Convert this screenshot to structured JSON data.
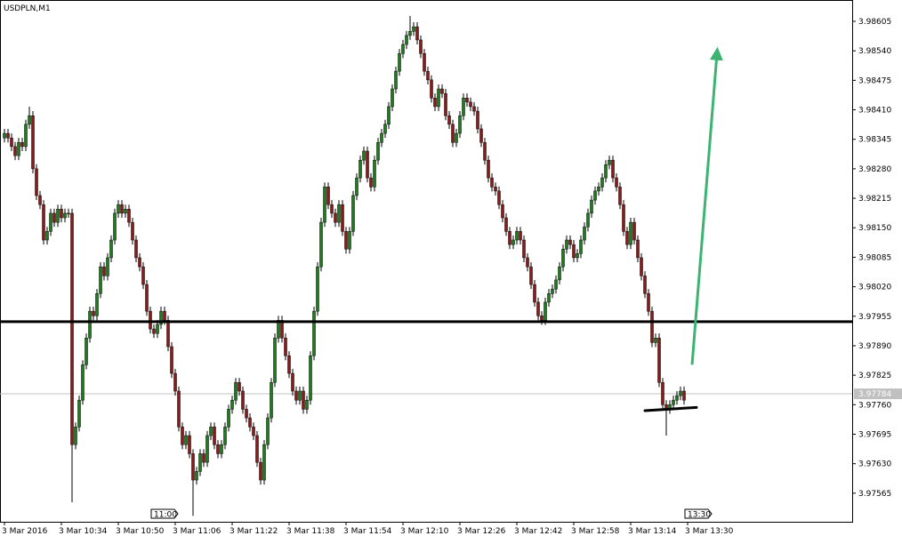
{
  "chart_data": {
    "type": "candlestick",
    "title": "USDPLN,M1",
    "open": [
      3.98348,
      3.98358,
      3.98348,
      3.98329,
      3.98309,
      3.98338,
      3.98329,
      3.98378,
      3.98397,
      3.9828,
      3.98221,
      3.98201,
      3.98123,
      3.98142,
      3.98182,
      3.98162,
      3.98191,
      3.98172,
      3.98182,
      3.98182,
      3.97672,
      3.97711,
      3.9777,
      3.97848,
      3.97907,
      3.97966,
      3.97956,
      3.98005,
      3.98064,
      3.98044,
      3.98084,
      3.98123,
      3.98182,
      3.98201,
      3.98182,
      3.98191,
      3.98162,
      3.98123,
      3.98084,
      3.98064,
      3.98025,
      3.97966,
      3.97927,
      3.97917,
      3.97937,
      3.97966,
      3.97946,
      3.97888,
      3.97829,
      3.9779,
      3.97711,
      3.97672,
      3.97692,
      3.97652,
      3.97594,
      3.97613,
      3.97652,
      3.97633,
      3.97692,
      3.97711,
      3.97672,
      3.97652,
      3.97672,
      3.97711,
      3.9775,
      3.9777,
      3.97809,
      3.9779,
      3.9775,
      3.97731,
      3.97711,
      3.97692,
      3.97633,
      3.97594,
      3.97672,
      3.97731,
      3.97809,
      3.97907,
      3.97946,
      3.97907,
      3.97868,
      3.97829,
      3.9779,
      3.9777,
      3.9779,
      3.9775,
      3.9777,
      3.97868,
      3.97966,
      3.98064,
      3.98162,
      3.9824,
      3.98201,
      3.98182,
      3.98162,
      3.98201,
      3.98142,
      3.98103,
      3.98142,
      3.98221,
      3.9826,
      3.98299,
      3.98319,
      3.9826,
      3.9824,
      3.98299,
      3.98338,
      3.98358,
      3.98378,
      3.98417,
      3.98456,
      3.98495,
      3.98534,
      3.98554,
      3.98574,
      3.98583,
      3.98593,
      3.98564,
      3.98534,
      3.98495,
      3.98476,
      3.98436,
      3.98417,
      3.98456,
      3.98446,
      3.98397,
      3.98378,
      3.98338,
      3.98358,
      3.98397,
      3.98436,
      3.98427,
      3.98417,
      3.98407,
      3.98368,
      3.98338,
      3.98299,
      3.9826,
      3.9824,
      3.98231,
      3.98201,
      3.98172,
      3.98142,
      3.98113,
      3.98123,
      3.98142,
      3.98123,
      3.98084,
      3.98064,
      3.98025,
      3.97986,
      3.97956,
      3.97946,
      3.97986,
      3.98005,
      3.98015,
      3.98035,
      3.98064,
      3.98103,
      3.98123,
      3.98113,
      3.98084,
      3.98093,
      3.98123,
      3.98152,
      3.98182,
      3.98211,
      3.98231,
      3.9824,
      3.9826,
      3.98289,
      3.98299,
      3.9826,
      3.9824,
      3.98201,
      3.98142,
      3.98113,
      3.98162,
      3.98123,
      3.98084,
      3.98044,
      3.98005,
      3.97966,
      3.97897,
      3.97907,
      3.97809,
      3.9776,
      3.9775,
      3.9776,
      3.9777,
      3.9778,
      3.9779
    ],
    "high": [
      3.98368,
      3.98368,
      3.98358,
      3.98339,
      3.98348,
      3.98348,
      3.98388,
      3.98417,
      3.98407,
      3.9829,
      3.98231,
      3.98211,
      3.98152,
      3.98192,
      3.98192,
      3.98201,
      3.98201,
      3.98192,
      3.98192,
      3.98192,
      3.97721,
      3.9778,
      3.97858,
      3.97917,
      3.97976,
      3.97976,
      3.98015,
      3.98074,
      3.98074,
      3.98094,
      3.98133,
      3.98192,
      3.98211,
      3.98211,
      3.98201,
      3.98201,
      3.98172,
      3.98133,
      3.98094,
      3.98074,
      3.98035,
      3.97976,
      3.97937,
      3.97947,
      3.97976,
      3.97976,
      3.97956,
      3.97898,
      3.97839,
      3.978,
      3.97721,
      3.97702,
      3.97702,
      3.97662,
      3.97623,
      3.97662,
      3.97662,
      3.97702,
      3.97721,
      3.97721,
      3.97682,
      3.97682,
      3.97721,
      3.9776,
      3.9778,
      3.97819,
      3.97819,
      3.978,
      3.9776,
      3.97741,
      3.97721,
      3.97702,
      3.97643,
      3.97682,
      3.97741,
      3.97819,
      3.97917,
      3.97956,
      3.97956,
      3.97917,
      3.97878,
      3.97839,
      3.978,
      3.978,
      3.978,
      3.9778,
      3.97878,
      3.97976,
      3.98074,
      3.98172,
      3.9825,
      3.9825,
      3.98211,
      3.98192,
      3.98211,
      3.98211,
      3.98152,
      3.98152,
      3.98231,
      3.9827,
      3.98309,
      3.98329,
      3.98329,
      3.9827,
      3.98309,
      3.98348,
      3.98368,
      3.98388,
      3.98427,
      3.98466,
      3.98505,
      3.98544,
      3.98564,
      3.98584,
      3.98617,
      3.98603,
      3.98603,
      3.98574,
      3.98544,
      3.98505,
      3.98486,
      3.98446,
      3.98466,
      3.98466,
      3.98456,
      3.98407,
      3.98388,
      3.98368,
      3.98407,
      3.98446,
      3.98446,
      3.98437,
      3.98427,
      3.98417,
      3.98378,
      3.98348,
      3.98309,
      3.9827,
      3.9825,
      3.98241,
      3.98211,
      3.98182,
      3.98152,
      3.98133,
      3.98152,
      3.98152,
      3.98133,
      3.98094,
      3.98074,
      3.98035,
      3.97996,
      3.97966,
      3.97996,
      3.98015,
      3.98025,
      3.98045,
      3.98074,
      3.98113,
      3.98133,
      3.98133,
      3.98123,
      3.98103,
      3.98133,
      3.98162,
      3.98192,
      3.98221,
      3.98241,
      3.9825,
      3.9827,
      3.98299,
      3.98309,
      3.98309,
      3.9827,
      3.9825,
      3.98211,
      3.98152,
      3.98172,
      3.98172,
      3.98133,
      3.98094,
      3.98054,
      3.98015,
      3.97976,
      3.97917,
      3.97917,
      3.97819,
      3.9777,
      3.9777,
      3.9778,
      3.9779,
      3.978,
      3.978
    ],
    "low": [
      3.98338,
      3.98338,
      3.98319,
      3.98299,
      3.98299,
      3.98319,
      3.98319,
      3.98368,
      3.9827,
      3.98211,
      3.98191,
      3.98113,
      3.98113,
      3.98132,
      3.98152,
      3.98152,
      3.98162,
      3.98162,
      3.98172,
      3.97545,
      3.97662,
      3.97701,
      3.9776,
      3.97838,
      3.97897,
      3.97946,
      3.97946,
      3.97995,
      3.98034,
      3.98034,
      3.98074,
      3.98113,
      3.98172,
      3.98172,
      3.98172,
      3.98152,
      3.98113,
      3.98074,
      3.98054,
      3.98015,
      3.97956,
      3.97917,
      3.97907,
      3.97907,
      3.97927,
      3.97936,
      3.97878,
      3.97819,
      3.9778,
      3.97701,
      3.97662,
      3.97662,
      3.97642,
      3.97515,
      3.97584,
      3.97603,
      3.97623,
      3.97623,
      3.97682,
      3.97662,
      3.97642,
      3.97642,
      3.97662,
      3.97701,
      3.9774,
      3.9776,
      3.9778,
      3.9774,
      3.97721,
      3.97701,
      3.97682,
      3.97623,
      3.97584,
      3.97584,
      3.97662,
      3.97721,
      3.97799,
      3.97897,
      3.97897,
      3.97858,
      3.97819,
      3.9778,
      3.9776,
      3.9776,
      3.9774,
      3.9774,
      3.9776,
      3.97858,
      3.97956,
      3.98054,
      3.98152,
      3.98191,
      3.98172,
      3.98152,
      3.98152,
      3.98132,
      3.98093,
      3.98093,
      3.98132,
      3.98211,
      3.9825,
      3.98289,
      3.9825,
      3.9823,
      3.9823,
      3.98289,
      3.98328,
      3.98348,
      3.98368,
      3.98407,
      3.98446,
      3.98485,
      3.98524,
      3.98544,
      3.98564,
      3.98573,
      3.98554,
      3.98524,
      3.98485,
      3.98466,
      3.98426,
      3.98407,
      3.98407,
      3.98436,
      3.98387,
      3.98368,
      3.98328,
      3.98328,
      3.98348,
      3.98387,
      3.98417,
      3.98407,
      3.98397,
      3.98358,
      3.98328,
      3.98289,
      3.9825,
      3.9823,
      3.98221,
      3.98191,
      3.98162,
      3.98132,
      3.98103,
      3.98103,
      3.98113,
      3.98113,
      3.98074,
      3.98054,
      3.98015,
      3.97976,
      3.97946,
      3.97936,
      3.97936,
      3.97976,
      3.97995,
      3.98005,
      3.98025,
      3.98054,
      3.98093,
      3.98103,
      3.98074,
      3.98074,
      3.98083,
      3.98113,
      3.98142,
      3.98172,
      3.98201,
      3.98221,
      3.9823,
      3.9825,
      3.98279,
      3.9825,
      3.9823,
      3.98191,
      3.98132,
      3.98103,
      3.98103,
      3.98113,
      3.98074,
      3.98034,
      3.97995,
      3.97956,
      3.97887,
      3.97887,
      3.97799,
      3.9775,
      3.97692,
      3.9774,
      3.9775,
      3.9776,
      3.9777,
      3.9776
    ],
    "close": [
      3.98358,
      3.98348,
      3.98329,
      3.98309,
      3.98338,
      3.98329,
      3.98378,
      3.98397,
      3.9828,
      3.98221,
      3.98201,
      3.98123,
      3.98142,
      3.98182,
      3.98162,
      3.98191,
      3.98172,
      3.98182,
      3.98182,
      3.97672,
      3.97711,
      3.9777,
      3.97848,
      3.97907,
      3.97966,
      3.97956,
      3.98005,
      3.98064,
      3.98044,
      3.98084,
      3.98123,
      3.98182,
      3.98201,
      3.98182,
      3.98191,
      3.98162,
      3.98123,
      3.98084,
      3.98064,
      3.98025,
      3.97966,
      3.97927,
      3.97917,
      3.97937,
      3.97966,
      3.97946,
      3.97888,
      3.97829,
      3.9779,
      3.97711,
      3.97672,
      3.97692,
      3.97652,
      3.97594,
      3.97613,
      3.97652,
      3.97633,
      3.97692,
      3.97711,
      3.97672,
      3.97652,
      3.97672,
      3.97711,
      3.9775,
      3.9777,
      3.97809,
      3.9779,
      3.9775,
      3.97731,
      3.97711,
      3.97692,
      3.97633,
      3.97594,
      3.97672,
      3.97731,
      3.97809,
      3.97907,
      3.97946,
      3.97907,
      3.97868,
      3.97829,
      3.9779,
      3.9777,
      3.9779,
      3.9775,
      3.9777,
      3.97868,
      3.97966,
      3.98064,
      3.98162,
      3.9824,
      3.98201,
      3.98182,
      3.98162,
      3.98201,
      3.98142,
      3.98103,
      3.98142,
      3.98221,
      3.9826,
      3.98299,
      3.98319,
      3.9826,
      3.9824,
      3.98299,
      3.98338,
      3.98358,
      3.98378,
      3.98417,
      3.98456,
      3.98495,
      3.98534,
      3.98554,
      3.98574,
      3.98583,
      3.98593,
      3.98564,
      3.98534,
      3.98495,
      3.98476,
      3.98436,
      3.98417,
      3.98456,
      3.98446,
      3.98397,
      3.98378,
      3.98338,
      3.98358,
      3.98397,
      3.98436,
      3.98427,
      3.98417,
      3.98407,
      3.98368,
      3.98338,
      3.98299,
      3.9826,
      3.9824,
      3.98231,
      3.98201,
      3.98172,
      3.98142,
      3.98113,
      3.98123,
      3.98142,
      3.98123,
      3.98084,
      3.98064,
      3.98025,
      3.97986,
      3.97956,
      3.97946,
      3.97986,
      3.98005,
      3.98015,
      3.98035,
      3.98064,
      3.98103,
      3.98123,
      3.98113,
      3.98084,
      3.98093,
      3.98123,
      3.98152,
      3.98182,
      3.98211,
      3.98231,
      3.9824,
      3.9826,
      3.98289,
      3.98299,
      3.9826,
      3.9824,
      3.98201,
      3.98142,
      3.98113,
      3.98162,
      3.98123,
      3.98084,
      3.98044,
      3.98005,
      3.97966,
      3.97897,
      3.97907,
      3.97809,
      3.9776,
      3.9775,
      3.9776,
      3.9777,
      3.9778,
      3.9779,
      3.9777
    ],
    "up_color": "#1e7b1e",
    "down_color": "#8b1a1a",
    "xlim": [
      -1.25,
      238.25
    ],
    "xticks": [
      {
        "value": 0,
        "label": "3 Mar 2016"
      },
      {
        "value": 16,
        "label": "3 Mar 10:34"
      },
      {
        "value": 32,
        "label": "3 Mar 10:50"
      },
      {
        "value": 48,
        "label": "3 Mar 11:06"
      },
      {
        "value": 64,
        "label": "3 Mar 11:22"
      },
      {
        "value": 80,
        "label": "3 Mar 11:38"
      },
      {
        "value": 96,
        "label": "3 Mar 11:54"
      },
      {
        "value": 112,
        "label": "3 Mar 12:10"
      },
      {
        "value": 128,
        "label": "3 Mar 12:26"
      },
      {
        "value": 144,
        "label": "3 Mar 12:42"
      },
      {
        "value": 160,
        "label": "3 Mar 12:58"
      },
      {
        "value": 176,
        "label": "3 Mar 13:14"
      },
      {
        "value": 192,
        "label": "3 Mar 13:30"
      }
    ],
    "time_markers": [
      {
        "value": 42,
        "label": "11:00"
      },
      {
        "value": 192,
        "label": "13:30"
      }
    ],
    "ylim": [
      3.97502,
      3.98652
    ],
    "yticks": [
      {
        "value": 3.98605,
        "label": "3.98605"
      },
      {
        "value": 3.9854,
        "label": "3.98540"
      },
      {
        "value": 3.98475,
        "label": "3.98475"
      },
      {
        "value": 3.9841,
        "label": "3.98410"
      },
      {
        "value": 3.98345,
        "label": "3.98345"
      },
      {
        "value": 3.9828,
        "label": "3.98280"
      },
      {
        "value": 3.98215,
        "label": "3.98215"
      },
      {
        "value": 3.9815,
        "label": "3.98150"
      },
      {
        "value": 3.98085,
        "label": "3.98085"
      },
      {
        "value": 3.9802,
        "label": "3.98020"
      },
      {
        "value": 3.97955,
        "label": "3.97955"
      },
      {
        "value": 3.9789,
        "label": "3.97890"
      },
      {
        "value": 3.97825,
        "label": "3.97825"
      },
      {
        "value": 3.9776,
        "label": "3.97760"
      },
      {
        "value": 3.97695,
        "label": "3.97695"
      },
      {
        "value": 3.9763,
        "label": "3.97630"
      },
      {
        "value": 3.97565,
        "label": "3.97565"
      }
    ],
    "current_price": 3.97784,
    "hline": {
      "value": 3.97943,
      "color": "#000000"
    },
    "support_line": {
      "x": [
        180,
        194.5
      ],
      "y": [
        3.97747,
        3.97754
      ],
      "color": "#000000"
    },
    "arrow": {
      "x": [
        193.25,
        200.25
      ],
      "y": [
        3.97848,
        3.98534
      ],
      "color": "#3cb371"
    }
  }
}
